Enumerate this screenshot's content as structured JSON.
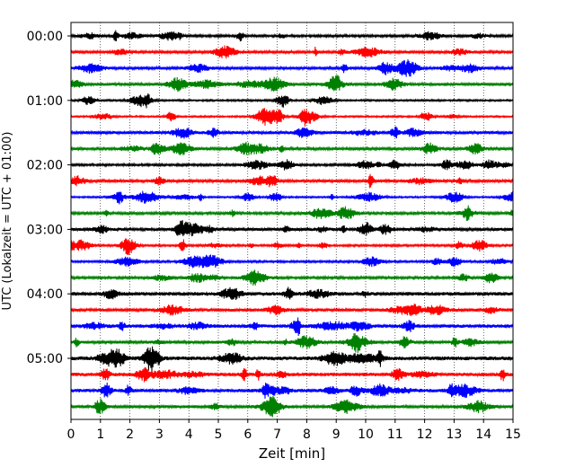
{
  "chart_data": {
    "type": "line",
    "title": "",
    "xlabel": "Zeit  [min]",
    "ylabel": "UTC (Lokalzeit = UTC + 01:00)",
    "xlim": [
      0,
      15
    ],
    "x_ticks": [
      "0",
      "1",
      "2",
      "3",
      "4",
      "5",
      "6",
      "7",
      "8",
      "9",
      "10",
      "11",
      "12",
      "13",
      "14",
      "15"
    ],
    "y_ticks": [
      {
        "label": "00:00",
        "trace": 0
      },
      {
        "label": "01:00",
        "trace": 4
      },
      {
        "label": "02:00",
        "trace": 8
      },
      {
        "label": "03:00",
        "trace": 12
      },
      {
        "label": "04:00",
        "trace": 16
      },
      {
        "label": "05:00",
        "trace": 20
      }
    ],
    "trace_count": 24,
    "trace_minutes": 15,
    "color_cycle": [
      "#000000",
      "#ff0000",
      "#0000ff",
      "#008000"
    ],
    "vertical_grid": "dotted",
    "series_kind": "seismogram helicorder (stacked traces)"
  }
}
